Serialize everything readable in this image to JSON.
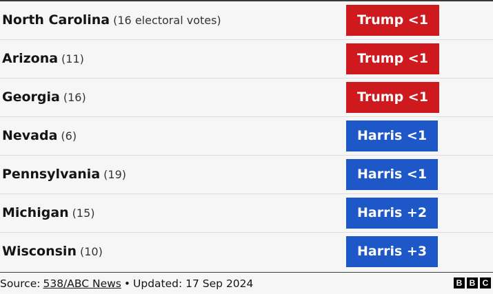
{
  "table": {
    "rows": [
      {
        "state": "North Carolina",
        "votes": "(16 electoral votes)",
        "lead": "Trump <1",
        "color": "#ce1a1f"
      },
      {
        "state": "Arizona",
        "votes": "(11)",
        "lead": "Trump <1",
        "color": "#ce1a1f"
      },
      {
        "state": "Georgia",
        "votes": "(16)",
        "lead": "Trump <1",
        "color": "#ce1a1f"
      },
      {
        "state": "Nevada",
        "votes": "(6)",
        "lead": "Harris <1",
        "color": "#1e58c8"
      },
      {
        "state": "Pennsylvania",
        "votes": "(19)",
        "lead": "Harris <1",
        "color": "#1e58c8"
      },
      {
        "state": "Michigan",
        "votes": "(15)",
        "lead": "Harris +2",
        "color": "#1e58c8"
      },
      {
        "state": "Wisconsin",
        "votes": "(10)",
        "lead": "Harris +3",
        "color": "#1e58c8"
      }
    ]
  },
  "footer": {
    "source_label": "Source:",
    "source_link": "538/ABC News",
    "separator": "•",
    "updated": "Updated: 17 Sep 2024",
    "logo": [
      "B",
      "B",
      "C"
    ]
  }
}
